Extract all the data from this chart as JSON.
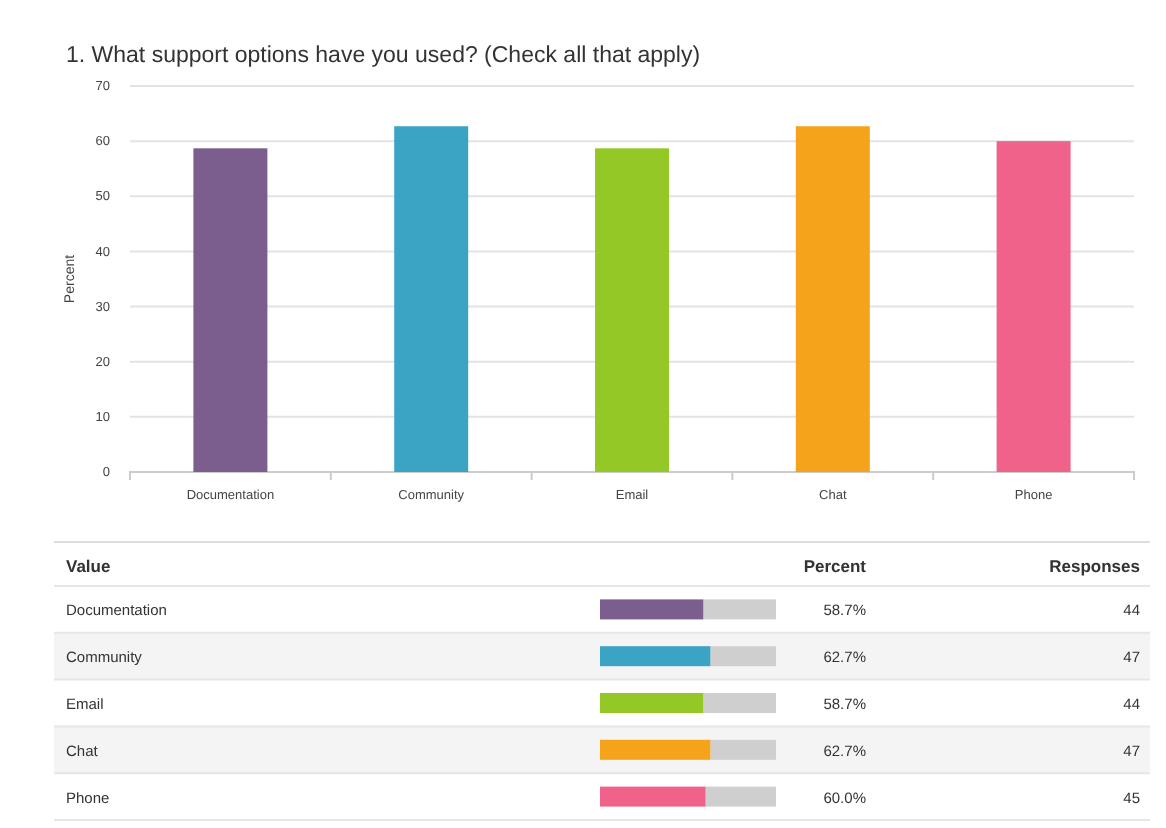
{
  "chart_data": [
    {
      "type": "bar",
      "title": "1. What support options have you used? (Check all that apply)",
      "ylabel": "Percent",
      "categories": [
        "Documentation",
        "Community",
        "Email",
        "Chat",
        "Phone"
      ],
      "values": [
        58.7,
        62.7,
        58.7,
        62.7,
        60.0
      ],
      "colors": [
        "#7b5e8e",
        "#3ba3c4",
        "#93c826",
        "#f5a31a",
        "#f0628a"
      ],
      "ylim": [
        0,
        70
      ],
      "yticks": [
        0,
        10,
        20,
        30,
        40,
        50,
        60,
        70
      ],
      "grid": "y"
    },
    {
      "type": "other",
      "xlabel": "Value",
      "categories": [
        "Documentation",
        "Community",
        "Email",
        "Chat",
        "Phone"
      ],
      "colors": [
        "#7b5e8e",
        "#3ba3c4",
        "#93c826",
        "#f5a31a",
        "#f0628a"
      ],
      "series": [
        {
          "name": "Percent",
          "values": [
            58.7,
            62.7,
            58.7,
            62.7,
            60.0
          ],
          "value_labels": [
            "58.7%",
            "62.7%",
            "58.7%",
            "62.7%",
            "60.0%"
          ]
        },
        {
          "name": "Responses",
          "values": [
            44,
            47,
            44,
            47,
            45
          ]
        }
      ],
      "data_labels": true
    }
  ]
}
